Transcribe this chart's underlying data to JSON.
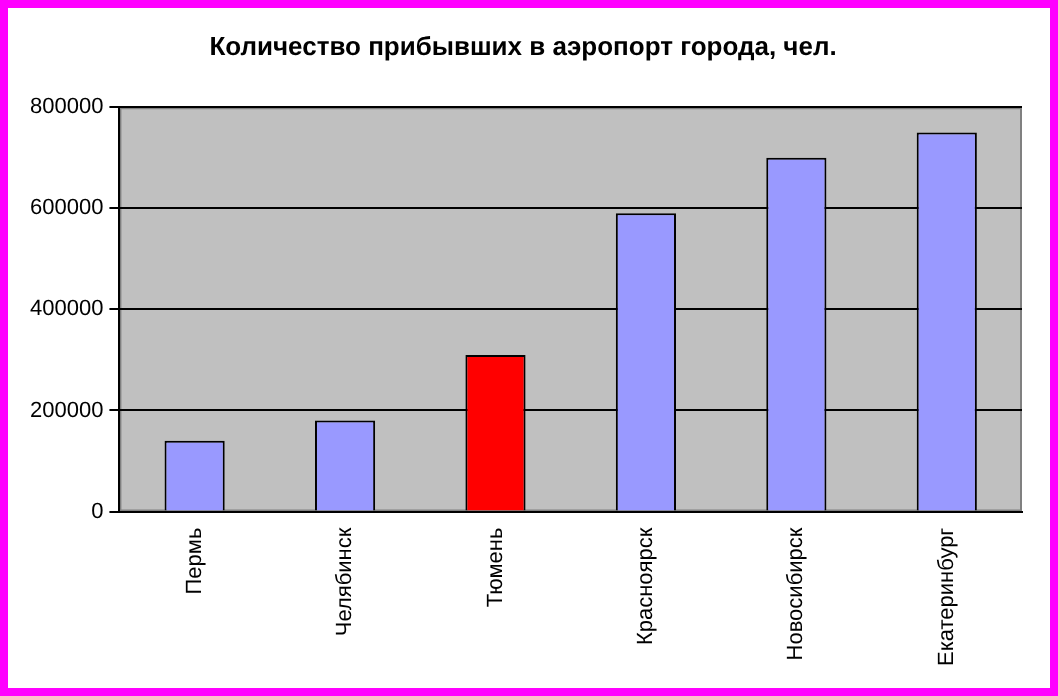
{
  "chart_data": {
    "type": "bar",
    "title": "Количество прибывших в аэропорт города, чел.",
    "categories": [
      "Пермь",
      "Челябинск",
      "Тюмень",
      "Красноярск",
      "Новосибирск",
      "Екатеринбург"
    ],
    "values": [
      140000,
      180000,
      310000,
      590000,
      700000,
      750000
    ],
    "colors": [
      "#9999ff",
      "#9999ff",
      "#ff0000",
      "#9999ff",
      "#9999ff",
      "#9999ff"
    ],
    "ylim": [
      0,
      800000
    ],
    "yticks": [
      0,
      200000,
      400000,
      600000,
      800000
    ],
    "grid": "y",
    "legend": false
  }
}
